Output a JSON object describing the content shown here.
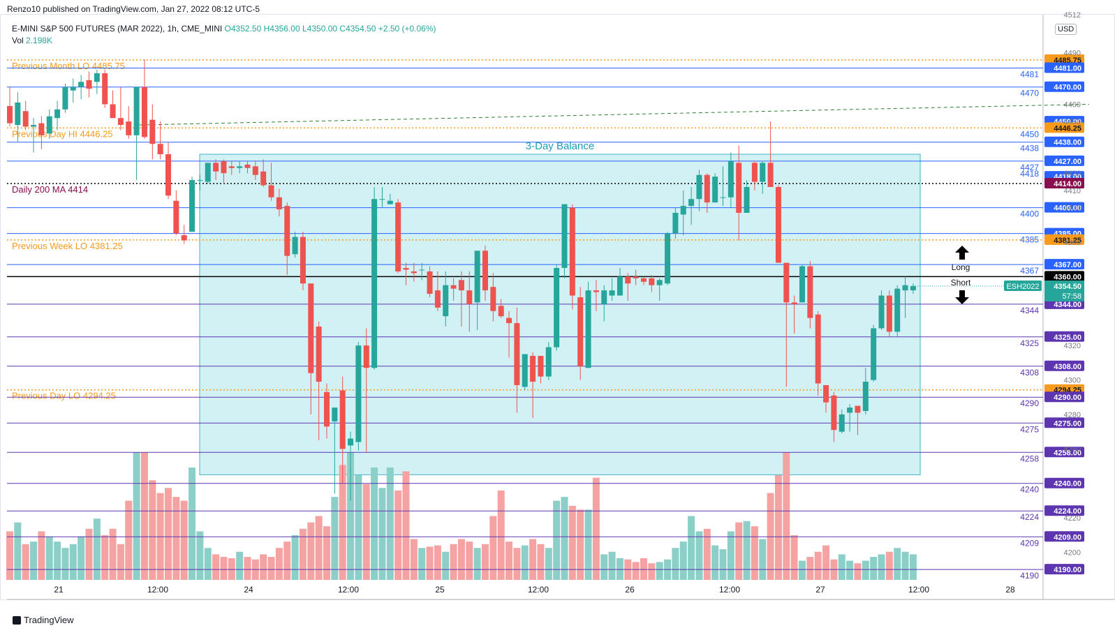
{
  "header": {
    "publisher": "Renzo10 published on TradingView.com, Jan 27, 2022 08:12 UTC-5"
  },
  "legend": {
    "symbol": "E-MINI S&P 500 FUTURES (MAR 2022), 1h, CME_MINI",
    "open": "O4352.50",
    "high": "H4356.00",
    "low": "L4350.00",
    "close": "C4354.50",
    "change": "+2.50 (+0.06%)",
    "vol_label": "Vol",
    "vol_value": "2.198K"
  },
  "currency": "USD",
  "footer": {
    "brand": "TradingView"
  },
  "colors": {
    "up": "#26a69a",
    "down": "#ef5350",
    "upVol": "#8ccfc9",
    "downVol": "#f5a3a2",
    "blueLine": "#2962ff",
    "purpleLine": "#5e35b1",
    "orange": "#f89a1c",
    "balanceFill": "#c9eef3",
    "balanceStroke": "#3fb6c8"
  },
  "chart_data": {
    "type": "candlestick",
    "ylim": [
      4184,
      4512
    ],
    "x_ticks": [
      "21",
      "12:00",
      "24",
      "12:00",
      "25",
      "12:00",
      "26",
      "12:00",
      "27",
      "12:00",
      "28"
    ],
    "price_ticks": [
      "4512",
      "4490",
      "4460",
      "4450",
      "4420",
      "4410",
      "4400",
      "4380",
      "4320",
      "4300",
      "4280",
      "4260",
      "4220",
      "4200"
    ],
    "candles": [
      {
        "o": 4459,
        "h": 4470,
        "l": 4447,
        "c": 4449
      },
      {
        "o": 4448,
        "h": 4467,
        "l": 4438,
        "c": 4461
      },
      {
        "o": 4456,
        "h": 4462,
        "l": 4445,
        "c": 4447
      },
      {
        "o": 4447,
        "h": 4452,
        "l": 4432,
        "c": 4448
      },
      {
        "o": 4449,
        "h": 4453,
        "l": 4434,
        "c": 4442
      },
      {
        "o": 4443,
        "h": 4457,
        "l": 4440,
        "c": 4453
      },
      {
        "o": 4452,
        "h": 4462,
        "l": 4445,
        "c": 4457
      },
      {
        "o": 4457,
        "h": 4472,
        "l": 4455,
        "c": 4470
      },
      {
        "o": 4468,
        "h": 4475,
        "l": 4461,
        "c": 4470
      },
      {
        "o": 4470,
        "h": 4477,
        "l": 4463,
        "c": 4473
      },
      {
        "o": 4474,
        "h": 4479,
        "l": 4464,
        "c": 4469
      },
      {
        "o": 4473,
        "h": 4480,
        "l": 4466,
        "c": 4478
      },
      {
        "o": 4478,
        "h": 4480,
        "l": 4458,
        "c": 4460
      },
      {
        "o": 4460,
        "h": 4468,
        "l": 4452,
        "c": 4452
      },
      {
        "o": 4452,
        "h": 4470,
        "l": 4445,
        "c": 4448
      },
      {
        "o": 4450,
        "h": 4459,
        "l": 4440,
        "c": 4442
      },
      {
        "o": 4442,
        "h": 4470,
        "l": 4416,
        "c": 4470
      },
      {
        "o": 4470,
        "h": 4486,
        "l": 4440,
        "c": 4441
      },
      {
        "o": 4451,
        "h": 4460,
        "l": 4428,
        "c": 4437
      },
      {
        "o": 4437,
        "h": 4450,
        "l": 4428,
        "c": 4431
      },
      {
        "o": 4431,
        "h": 4438,
        "l": 4405,
        "c": 4407
      },
      {
        "o": 4404,
        "h": 4410,
        "l": 4384,
        "c": 4385
      },
      {
        "o": 4384,
        "h": 4390,
        "l": 4379,
        "c": 4381
      },
      {
        "o": 4386,
        "h": 4418,
        "l": 4386,
        "c": 4416
      },
      {
        "o": 4416,
        "h": 4419,
        "l": 4410,
        "c": 4416
      },
      {
        "o": 4415,
        "h": 4426,
        "l": 4414,
        "c": 4426
      },
      {
        "o": 4426,
        "h": 4428,
        "l": 4416,
        "c": 4421
      },
      {
        "o": 4427,
        "h": 4428,
        "l": 4414,
        "c": 4420
      },
      {
        "o": 4424,
        "h": 4427,
        "l": 4419,
        "c": 4423
      },
      {
        "o": 4423,
        "h": 4427,
        "l": 4420,
        "c": 4424
      },
      {
        "o": 4425,
        "h": 4427,
        "l": 4420,
        "c": 4423
      },
      {
        "o": 4424,
        "h": 4427,
        "l": 4416,
        "c": 4419
      },
      {
        "o": 4421,
        "h": 4428,
        "l": 4412,
        "c": 4413
      },
      {
        "o": 4413,
        "h": 4426,
        "l": 4404,
        "c": 4406
      },
      {
        "o": 4406,
        "h": 4411,
        "l": 4395,
        "c": 4399
      },
      {
        "o": 4401,
        "h": 4403,
        "l": 4361,
        "c": 4372
      },
      {
        "o": 4373,
        "h": 4386,
        "l": 4371,
        "c": 4383
      },
      {
        "o": 4383,
        "h": 4386,
        "l": 4352,
        "c": 4356
      },
      {
        "o": 4356,
        "h": 4356,
        "l": 4280,
        "c": 4304
      },
      {
        "o": 4331,
        "h": 4334,
        "l": 4265,
        "c": 4299
      },
      {
        "o": 4293,
        "h": 4298,
        "l": 4266,
        "c": 4273
      },
      {
        "o": 4276,
        "h": 4284,
        "l": 4234,
        "c": 4284
      },
      {
        "o": 4294,
        "h": 4302,
        "l": 4240,
        "c": 4260
      },
      {
        "o": 4262,
        "h": 4270,
        "l": 4230,
        "c": 4266
      },
      {
        "o": 4264,
        "h": 4322,
        "l": 4259,
        "c": 4320
      },
      {
        "o": 4320,
        "h": 4330,
        "l": 4258,
        "c": 4307
      },
      {
        "o": 4307,
        "h": 4412,
        "l": 4306,
        "c": 4405
      },
      {
        "o": 4405,
        "h": 4412,
        "l": 4400,
        "c": 4405
      },
      {
        "o": 4402,
        "h": 4408,
        "l": 4402,
        "c": 4404
      },
      {
        "o": 4403,
        "h": 4405,
        "l": 4362,
        "c": 4363
      },
      {
        "o": 4365,
        "h": 4368,
        "l": 4355,
        "c": 4364
      },
      {
        "o": 4363,
        "h": 4368,
        "l": 4357,
        "c": 4362
      },
      {
        "o": 4364,
        "h": 4368,
        "l": 4358,
        "c": 4364
      },
      {
        "o": 4363,
        "h": 4366,
        "l": 4348,
        "c": 4350
      },
      {
        "o": 4352,
        "h": 4363,
        "l": 4340,
        "c": 4342
      },
      {
        "o": 4337,
        "h": 4363,
        "l": 4331,
        "c": 4355
      },
      {
        "o": 4355,
        "h": 4359,
        "l": 4346,
        "c": 4353
      },
      {
        "o": 4358,
        "h": 4363,
        "l": 4331,
        "c": 4352
      },
      {
        "o": 4352,
        "h": 4363,
        "l": 4328,
        "c": 4344
      },
      {
        "o": 4345,
        "h": 4375,
        "l": 4329,
        "c": 4375
      },
      {
        "o": 4375,
        "h": 4378,
        "l": 4346,
        "c": 4352
      },
      {
        "o": 4354,
        "h": 4362,
        "l": 4334,
        "c": 4340
      },
      {
        "o": 4343,
        "h": 4347,
        "l": 4336,
        "c": 4337
      },
      {
        "o": 4336,
        "h": 4340,
        "l": 4313,
        "c": 4333
      },
      {
        "o": 4333,
        "h": 4342,
        "l": 4281,
        "c": 4297
      },
      {
        "o": 4296,
        "h": 4313,
        "l": 4294,
        "c": 4315
      },
      {
        "o": 4314,
        "h": 4316,
        "l": 4278,
        "c": 4299
      },
      {
        "o": 4314,
        "h": 4314,
        "l": 4298,
        "c": 4302
      },
      {
        "o": 4302,
        "h": 4322,
        "l": 4300,
        "c": 4319
      },
      {
        "o": 4319,
        "h": 4367,
        "l": 4317,
        "c": 4365
      },
      {
        "o": 4365,
        "h": 4402,
        "l": 4359,
        "c": 4402
      },
      {
        "o": 4400,
        "h": 4402,
        "l": 4341,
        "c": 4349
      },
      {
        "o": 4348,
        "h": 4354,
        "l": 4300,
        "c": 4308
      },
      {
        "o": 4307,
        "h": 4357,
        "l": 4307,
        "c": 4352
      },
      {
        "o": 4352,
        "h": 4358,
        "l": 4340,
        "c": 4351
      },
      {
        "o": 4344,
        "h": 4355,
        "l": 4334,
        "c": 4352
      },
      {
        "o": 4349,
        "h": 4359,
        "l": 4346,
        "c": 4352
      },
      {
        "o": 4349,
        "h": 4365,
        "l": 4349,
        "c": 4360
      },
      {
        "o": 4360,
        "h": 4362,
        "l": 4346,
        "c": 4356
      },
      {
        "o": 4360,
        "h": 4364,
        "l": 4355,
        "c": 4359
      },
      {
        "o": 4359,
        "h": 4360,
        "l": 4355,
        "c": 4357
      },
      {
        "o": 4359,
        "h": 4361,
        "l": 4351,
        "c": 4355
      },
      {
        "o": 4355,
        "h": 4359,
        "l": 4346,
        "c": 4358
      },
      {
        "o": 4356,
        "h": 4386,
        "l": 4355,
        "c": 4385
      },
      {
        "o": 4385,
        "h": 4400,
        "l": 4382,
        "c": 4397
      },
      {
        "o": 4396,
        "h": 4410,
        "l": 4384,
        "c": 4401
      },
      {
        "o": 4401,
        "h": 4412,
        "l": 4390,
        "c": 4405
      },
      {
        "o": 4405,
        "h": 4422,
        "l": 4398,
        "c": 4419
      },
      {
        "o": 4419,
        "h": 4420,
        "l": 4397,
        "c": 4403
      },
      {
        "o": 4403,
        "h": 4420,
        "l": 4403,
        "c": 4418
      },
      {
        "o": 4406,
        "h": 4424,
        "l": 4401,
        "c": 4406
      },
      {
        "o": 4406,
        "h": 4432,
        "l": 4400,
        "c": 4427
      },
      {
        "o": 4426,
        "h": 4436,
        "l": 4381,
        "c": 4397
      },
      {
        "o": 4397,
        "h": 4416,
        "l": 4397,
        "c": 4412
      },
      {
        "o": 4426,
        "h": 4427,
        "l": 4410,
        "c": 4415
      },
      {
        "o": 4415,
        "h": 4427,
        "l": 4408,
        "c": 4426
      },
      {
        "o": 4426,
        "h": 4450,
        "l": 4413,
        "c": 4412
      },
      {
        "o": 4412,
        "h": 4413,
        "l": 4368,
        "c": 4368
      },
      {
        "o": 4368,
        "h": 4366,
        "l": 4296,
        "c": 4345
      },
      {
        "o": 4345,
        "h": 4349,
        "l": 4327,
        "c": 4344
      },
      {
        "o": 4345,
        "h": 4367,
        "l": 4345,
        "c": 4366
      },
      {
        "o": 4366,
        "h": 4369,
        "l": 4330,
        "c": 4336
      },
      {
        "o": 4338,
        "h": 4340,
        "l": 4291,
        "c": 4298
      },
      {
        "o": 4297,
        "h": 4297,
        "l": 4281,
        "c": 4287
      },
      {
        "o": 4291,
        "h": 4293,
        "l": 4264,
        "c": 4271
      },
      {
        "o": 4270,
        "h": 4283,
        "l": 4269,
        "c": 4280
      },
      {
        "o": 4281,
        "h": 4286,
        "l": 4270,
        "c": 4284
      },
      {
        "o": 4285,
        "h": 4283,
        "l": 4268,
        "c": 4281
      },
      {
        "o": 4282,
        "h": 4307,
        "l": 4280,
        "c": 4299
      },
      {
        "o": 4300,
        "h": 4332,
        "l": 4299,
        "c": 4330
      },
      {
        "o": 4330,
        "h": 4352,
        "l": 4329,
        "c": 4349
      },
      {
        "o": 4349,
        "h": 4352,
        "l": 4325,
        "c": 4328
      },
      {
        "o": 4328,
        "h": 4355,
        "l": 4325,
        "c": 4353
      },
      {
        "o": 4352,
        "h": 4360,
        "l": 4336,
        "c": 4355
      },
      {
        "o": 4352,
        "h": 4356,
        "l": 4350,
        "c": 4354.5
      }
    ],
    "volume": [
      38,
      45,
      28,
      30,
      38,
      34,
      30,
      25,
      28,
      34,
      40,
      48,
      35,
      40,
      28,
      62,
      100,
      100,
      78,
      68,
      72,
      65,
      62,
      88,
      38,
      25,
      20,
      18,
      17,
      22,
      18,
      16,
      20,
      18,
      25,
      30,
      35,
      40,
      45,
      50,
      42,
      65,
      90,
      100,
      82,
      75,
      88,
      72,
      88,
      70,
      85,
      32,
      25,
      26,
      27,
      22,
      28,
      32,
      30,
      25,
      28,
      50,
      70,
      30,
      25,
      27,
      32,
      28,
      25,
      62,
      65,
      58,
      55,
      55,
      80,
      20,
      22,
      17,
      16,
      14,
      17,
      13,
      14,
      16,
      25,
      30,
      50,
      38,
      40,
      27,
      24,
      38,
      45,
      46,
      42,
      32,
      68,
      82,
      100,
      35,
      15,
      18,
      22,
      27,
      16,
      20,
      15,
      13,
      15,
      18,
      20,
      22,
      25,
      22,
      20,
      28,
      12
    ]
  },
  "levels": [
    {
      "price": "4485.75",
      "axis": "4485.75",
      "style": "orange-dotted",
      "label": "Previous Month LO 4485.75",
      "label_color": "#f89a1c",
      "tag_bg": "#f89a1c",
      "tag_color": "#131722"
    },
    {
      "price": "4481",
      "axis": "4481.00",
      "style": "blue",
      "axis_left": "4481",
      "tag_bg": "#2962ff",
      "tag_color": "#ffffff"
    },
    {
      "price": "4470",
      "axis": "4470.00",
      "style": "blue",
      "axis_left": "4470",
      "tag_bg": "#2962ff",
      "tag_color": "#ffffff"
    },
    {
      "price": "4450",
      "axis": "4450.00",
      "style": "none",
      "axis_left": "",
      "tag_bg": "#2962ff",
      "tag_color": "#ffffff"
    },
    {
      "price": "4446.25",
      "axis": "4446.25",
      "style": "orange-dotted",
      "axis_left": "4450",
      "label": "Previous Day HI 4446.25",
      "label_color": "#f89a1c",
      "tag_bg": "#f89a1c",
      "tag_color": "#131722"
    },
    {
      "price": "4438",
      "axis": "4438.00",
      "style": "blue",
      "axis_left": "4438",
      "tag_bg": "#2962ff",
      "tag_color": "#ffffff"
    },
    {
      "price": "4427",
      "axis": "4427.00",
      "style": "blue",
      "axis_left": "4427",
      "tag_bg": "#2962ff",
      "tag_color": "#ffffff"
    },
    {
      "price": "4418",
      "axis": "4418.00",
      "style": "none",
      "axis_left": "4418",
      "tag_bg": "#2962ff",
      "tag_color": "#ffffff"
    },
    {
      "price": "4414",
      "axis": "4414.00",
      "style": "maroon-dotted",
      "label": "Daily 200 MA 4414",
      "label_color": "#880e4f",
      "tag_bg": "#880e4f",
      "tag_color": "#ffffff"
    },
    {
      "price": "4400",
      "axis": "4400.00",
      "style": "blue",
      "axis_left": "4400",
      "tag_bg": "#2962ff",
      "tag_color": "#ffffff"
    },
    {
      "price": "4385",
      "axis": "4385.00",
      "style": "blue",
      "axis_left": "4385",
      "tag_bg": "#2962ff",
      "tag_color": "#ffffff"
    },
    {
      "price": "4381.25",
      "axis": "4381.25",
      "style": "orange-dotted",
      "label": "Previous Week LO 4381.25",
      "label_color": "#f89a1c",
      "tag_bg": "#f89a1c",
      "tag_color": "#131722"
    },
    {
      "price": "4367",
      "axis": "4367.00",
      "style": "blue",
      "axis_left": "4367",
      "tag_bg": "#2962ff",
      "tag_color": "#ffffff"
    },
    {
      "price": "4360",
      "axis": "4360.00",
      "style": "black",
      "tag_bg": "#000000",
      "tag_color": "#ffffff"
    },
    {
      "price": "4344",
      "axis": "4344.00",
      "style": "purple",
      "axis_left": "4344",
      "tag_bg": "#5e35b1",
      "tag_color": "#ffffff"
    },
    {
      "price": "4325",
      "axis": "4325.00",
      "style": "purple",
      "axis_left": "4325",
      "tag_bg": "#5e35b1",
      "tag_color": "#ffffff"
    },
    {
      "price": "4308",
      "axis": "4308.00",
      "style": "purple",
      "axis_left": "4308",
      "tag_bg": "#5e35b1",
      "tag_color": "#ffffff"
    },
    {
      "price": "4294.25",
      "axis": "4294.25",
      "style": "orange-dotted",
      "label": "Previous Day LO 4294.25",
      "label_color": "#f89a1c",
      "tag_bg": "#f89a1c",
      "tag_color": "#131722"
    },
    {
      "price": "4290",
      "axis": "4290.00",
      "style": "purple",
      "axis_left": "4290",
      "tag_bg": "#5e35b1",
      "tag_color": "#ffffff"
    },
    {
      "price": "4275",
      "axis": "4275.00",
      "style": "purple",
      "axis_left": "4275",
      "tag_bg": "#5e35b1",
      "tag_color": "#ffffff"
    },
    {
      "price": "4258",
      "axis": "4258.00",
      "style": "purple",
      "axis_left": "4258",
      "tag_bg": "#5e35b1",
      "tag_color": "#ffffff"
    },
    {
      "price": "4240",
      "axis": "4240.00",
      "style": "purple",
      "axis_left": "4240",
      "tag_bg": "#5e35b1",
      "tag_color": "#ffffff"
    },
    {
      "price": "4224",
      "axis": "4224.00",
      "style": "purple",
      "axis_left": "4224",
      "tag_bg": "#5e35b1",
      "tag_color": "#ffffff"
    },
    {
      "price": "4209",
      "axis": "4209.00",
      "style": "purple",
      "axis_left": "4209",
      "tag_bg": "#5e35b1",
      "tag_color": "#ffffff"
    },
    {
      "price": "4190",
      "axis": "4190.00",
      "style": "purple",
      "axis_left": "4190",
      "tag_bg": "#5e35b1",
      "tag_color": "#ffffff"
    }
  ],
  "balance_box": {
    "label": "3-Day Balance",
    "top": 4431,
    "bottom": 4245
  },
  "trend_line": {
    "from": 4448,
    "to": 4460
  },
  "annotations": {
    "long": "Long",
    "short": "Short"
  },
  "current": {
    "symbol_tag": "ESH2022",
    "price": "4354.50",
    "countdown": "57:58"
  }
}
